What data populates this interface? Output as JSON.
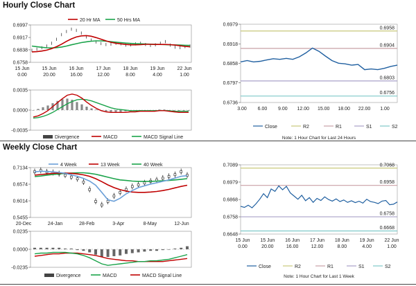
{
  "colors": {
    "close": "#1f5fa0",
    "ma20": "#c00000",
    "ma50": "#1aa34a",
    "candle": "#222222",
    "r2": "#c8c87a",
    "r1": "#c9a0a6",
    "s1": "#a8a0c8",
    "s2": "#7ec8c8",
    "hist": "#888888",
    "grid": "#cccccc",
    "week4": "#6a9fd8",
    "week13": "#c00000",
    "week40": "#1aa34a"
  },
  "sections": {
    "hourly_title": "Hourly Close Chart",
    "weekly_title": "Weekly Close Chart"
  },
  "chart_data": [
    {
      "id": "hourly-price",
      "type": "line",
      "title": "Hourly Close Chart",
      "legend": [
        "20 Hr MA",
        "50 Hrs MA"
      ],
      "y_ticks": [
        "0.6997",
        "0.6917",
        "0.6838",
        "0.6758"
      ],
      "ylim": [
        0.6758,
        0.6997
      ],
      "x_ticks": [
        [
          "15 Jun",
          "0.00"
        ],
        [
          "15 Jun",
          "20.00"
        ],
        [
          "16 Jun",
          "16.00"
        ],
        [
          "17 Jun",
          "12.00"
        ],
        [
          "18 Jun",
          "8.00"
        ],
        [
          "19 Jun",
          "4.00"
        ],
        [
          "22 Jun",
          "1.00"
        ]
      ],
      "series": [
        {
          "name": "Close",
          "values": [
            0.6835,
            0.6842,
            0.6851,
            0.6862,
            0.688,
            0.6905,
            0.6935,
            0.6955,
            0.697,
            0.6962,
            0.6945,
            0.692,
            0.69,
            0.6888,
            0.6878,
            0.6872,
            0.6874,
            0.688,
            0.6876,
            0.6868,
            0.687,
            0.6876,
            0.688,
            0.6872,
            0.6866,
            0.687,
            0.688,
            0.689,
            0.6868,
            0.6855,
            0.6852,
            0.6858,
            0.6862
          ]
        },
        {
          "name": "20 Hr MA",
          "values": [
            0.6825,
            0.6826,
            0.683,
            0.6836,
            0.6845,
            0.6858,
            0.6874,
            0.6892,
            0.6908,
            0.692,
            0.6927,
            0.6929,
            0.6925,
            0.6916,
            0.6906,
            0.6895,
            0.6886,
            0.688,
            0.6876,
            0.6872,
            0.687,
            0.687,
            0.6871,
            0.6873,
            0.6873,
            0.6872,
            0.6872,
            0.6872,
            0.6871,
            0.6868,
            0.6864,
            0.686,
            0.6857
          ]
        },
        {
          "name": "50 Hrs MA",
          "values": [
            0.6862,
            0.6858,
            0.6854,
            0.6851,
            0.685,
            0.6852,
            0.6856,
            0.6862,
            0.687,
            0.6877,
            0.6884,
            0.6889,
            0.6893,
            0.6895,
            0.6895,
            0.6893,
            0.689,
            0.6887,
            0.6884,
            0.6881,
            0.6879,
            0.6877,
            0.6876,
            0.6875,
            0.6874,
            0.6873,
            0.6872,
            0.6871,
            0.687,
            0.6869,
            0.6868,
            0.6867,
            0.6866
          ]
        }
      ]
    },
    {
      "id": "hourly-macd",
      "type": "bar",
      "y_ticks": [
        "0.0035",
        "0.0000",
        "-0.0035"
      ],
      "ylim": [
        -0.0035,
        0.0035
      ],
      "legend": [
        "Divergence",
        "MACD",
        "MACD Signal Line"
      ],
      "series": [
        {
          "name": "Divergence",
          "values": [
            0.0,
            0.0002,
            0.0005,
            0.0008,
            0.0012,
            0.0016,
            0.0019,
            0.002,
            0.0018,
            0.0014,
            0.001,
            0.0006,
            0.0003,
            0.0001,
            -0.0001,
            -0.0002,
            -0.0003,
            -0.0003,
            -0.0003,
            -0.0002,
            -0.0002,
            -0.0001,
            -0.0001,
            -0.0001,
            0.0,
            0.0,
            0.0001,
            0.0001,
            0.0,
            -0.0001,
            -0.0001,
            -0.0001,
            -0.0001
          ]
        },
        {
          "name": "MACD",
          "values": [
            -0.0012,
            -0.001,
            -0.0006,
            -0.0001,
            0.0006,
            0.0013,
            0.002,
            0.0026,
            0.0028,
            0.0026,
            0.0021,
            0.0014,
            0.0008,
            0.0003,
            -0.0001,
            -0.0003,
            -0.0004,
            -0.0004,
            -0.0004,
            -0.0004,
            -0.0003,
            -0.0003,
            -0.0002,
            -0.0002,
            -0.0002,
            -0.0002,
            -0.0001,
            -0.0001,
            -0.0002,
            -0.0003,
            -0.0004,
            -0.0004,
            -0.0004
          ]
        },
        {
          "name": "MACD Signal Line",
          "values": [
            -0.0014,
            -0.0013,
            -0.0011,
            -0.0008,
            -0.0004,
            0.0001,
            0.0006,
            0.0011,
            0.0015,
            0.0018,
            0.0019,
            0.0018,
            0.0016,
            0.0013,
            0.001,
            0.0007,
            0.0004,
            0.0002,
            0.0001,
            0.0,
            -0.0001,
            -0.0001,
            -0.0001,
            -0.0001,
            -0.0001,
            -0.0001,
            -0.0001,
            -0.0001,
            -0.0001,
            -0.0002,
            -0.0002,
            -0.0002,
            -0.0002
          ]
        }
      ]
    },
    {
      "id": "hourly-24h",
      "type": "line",
      "note": "Note: 1 Hour Chart for Last 24 Hours",
      "y_ticks": [
        "0.6979",
        "0.6918",
        "0.6858",
        "0.6797",
        "0.6736"
      ],
      "ylim": [
        0.6736,
        0.6979
      ],
      "x_ticks": [
        "3.00",
        "6.00",
        "9.00",
        "12.00",
        "15.00",
        "18.00",
        "22.00",
        "1.00"
      ],
      "legend": [
        "Close",
        "R2",
        "R1",
        "S1",
        "S2"
      ],
      "levels": [
        {
          "name": "R2",
          "value": 0.6958,
          "label": "0.6958"
        },
        {
          "name": "R1",
          "value": 0.6904,
          "label": "0.6904"
        },
        {
          "name": "S1",
          "value": 0.6803,
          "label": "0.6803"
        },
        {
          "name": "S2",
          "value": 0.6756,
          "label": "0.6756"
        }
      ],
      "series": [
        {
          "name": "Close",
          "values": [
            0.6862,
            0.6866,
            0.6862,
            0.6864,
            0.6868,
            0.6872,
            0.687,
            0.6873,
            0.687,
            0.6878,
            0.689,
            0.6905,
            0.6895,
            0.688,
            0.6866,
            0.6858,
            0.6856,
            0.6852,
            0.6854,
            0.6838,
            0.684,
            0.6838,
            0.6842,
            0.6848,
            0.6852
          ]
        }
      ]
    },
    {
      "id": "weekly-price",
      "type": "line",
      "title": "Weekly Close Chart",
      "legend": [
        "4 Week",
        "13 Week",
        "40 Week"
      ],
      "y_ticks": [
        "0.7134",
        "0.6574",
        "0.6014",
        "0.5455"
      ],
      "ylim": [
        0.5455,
        0.7134
      ],
      "x_ticks": [
        "20-Dec",
        "24-Jan",
        "28-Feb",
        "3-Apr",
        "8-May",
        "12-Jun"
      ],
      "series": [
        {
          "name": "Close",
          "values": [
            0.7,
            0.704,
            0.699,
            0.697,
            0.693,
            0.688,
            0.682,
            0.676,
            0.665,
            0.64,
            0.6,
            0.588,
            0.6,
            0.618,
            0.63,
            0.64,
            0.65,
            0.656,
            0.662,
            0.668,
            0.672,
            0.678,
            0.684,
            0.69,
            0.7,
            0.688
          ]
        },
        {
          "name": "4 Week",
          "values": [
            0.699,
            0.701,
            0.7,
            0.699,
            0.697,
            0.694,
            0.689,
            0.684,
            0.677,
            0.668,
            0.654,
            0.63,
            0.605,
            0.6,
            0.61,
            0.625,
            0.636,
            0.646,
            0.652,
            0.658,
            0.662,
            0.667,
            0.672,
            0.678,
            0.684,
            0.686
          ]
        },
        {
          "name": "13 Week",
          "values": [
            0.688,
            0.69,
            0.692,
            0.694,
            0.695,
            0.695,
            0.694,
            0.692,
            0.689,
            0.684,
            0.676,
            0.666,
            0.655,
            0.646,
            0.639,
            0.634,
            0.631,
            0.63,
            0.63,
            0.631,
            0.633,
            0.636,
            0.64,
            0.645,
            0.65,
            0.654
          ]
        },
        {
          "name": "40 Week",
          "values": [
            0.683,
            0.685,
            0.688,
            0.69,
            0.692,
            0.694,
            0.695,
            0.696,
            0.696,
            0.694,
            0.691,
            0.686,
            0.681,
            0.676,
            0.672,
            0.67,
            0.668,
            0.667,
            0.667,
            0.667,
            0.668,
            0.669,
            0.67,
            0.672,
            0.674,
            0.676
          ]
        }
      ]
    },
    {
      "id": "weekly-macd",
      "type": "bar",
      "y_ticks": [
        "0.0235",
        "0.0000",
        "-0.0235"
      ],
      "ylim": [
        -0.0235,
        0.0235
      ],
      "legend": [
        "Divergence",
        "MACD",
        "MACD Signal Line"
      ],
      "series": [
        {
          "name": "Divergence",
          "values": [
            0.002,
            0.002,
            0.002,
            0.002,
            0.002,
            0.001,
            0.001,
            -0.001,
            -0.002,
            -0.004,
            -0.007,
            -0.01,
            -0.01,
            -0.009,
            -0.008,
            -0.006,
            -0.005,
            -0.004,
            -0.003,
            -0.002,
            -0.002,
            -0.001,
            0.0,
            0.001,
            0.002,
            0.004
          ]
        },
        {
          "name": "MACD",
          "values": [
            -0.006,
            -0.005,
            -0.005,
            -0.004,
            -0.004,
            -0.004,
            -0.005,
            -0.006,
            -0.008,
            -0.011,
            -0.015,
            -0.019,
            -0.021,
            -0.02,
            -0.019,
            -0.018,
            -0.017,
            -0.016,
            -0.016,
            -0.015,
            -0.015,
            -0.014,
            -0.013,
            -0.011,
            -0.009,
            -0.007
          ]
        },
        {
          "name": "MACD Signal Line",
          "values": [
            -0.009,
            -0.008,
            -0.007,
            -0.006,
            -0.006,
            -0.005,
            -0.005,
            -0.005,
            -0.006,
            -0.007,
            -0.008,
            -0.01,
            -0.012,
            -0.013,
            -0.014,
            -0.015,
            -0.015,
            -0.016,
            -0.016,
            -0.016,
            -0.016,
            -0.016,
            -0.015,
            -0.014,
            -0.013,
            -0.012
          ]
        }
      ]
    },
    {
      "id": "weekly-1w",
      "type": "line",
      "note": "Note: 1 Hour Chart for Last 1 Week",
      "y_ticks": [
        "0.7089",
        "0.6979",
        "0.6868",
        "0.6758",
        "0.6648"
      ],
      "ylim": [
        0.6648,
        0.7089
      ],
      "x_ticks": [
        [
          "15 Jun",
          "0.00"
        ],
        [
          "15 Jun",
          "20.00"
        ],
        [
          "16 Jun",
          "16.00"
        ],
        [
          "17 Jun",
          "12.00"
        ],
        [
          "18 Jun",
          "8.00"
        ],
        [
          "19 Jun",
          "4.00"
        ],
        [
          "22 Jun",
          "1.00"
        ]
      ],
      "legend": [
        "Close",
        "R2",
        "R1",
        "S1",
        "S2"
      ],
      "levels": [
        {
          "name": "R2",
          "value": 0.7068,
          "label": "0.7068"
        },
        {
          "name": "R1",
          "value": 0.6958,
          "label": "0.6958"
        },
        {
          "name": "S1",
          "value": 0.6758,
          "label": "0.6758"
        },
        {
          "name": "S2",
          "value": 0.6668,
          "label": "0.6668"
        }
      ],
      "series": [
        {
          "name": "Close",
          "values": [
            0.6825,
            0.6818,
            0.6832,
            0.6815,
            0.684,
            0.687,
            0.6905,
            0.688,
            0.6935,
            0.692,
            0.6955,
            0.693,
            0.6952,
            0.691,
            0.689,
            0.687,
            0.6895,
            0.686,
            0.688,
            0.685,
            0.6875,
            0.6862,
            0.6885,
            0.6868,
            0.6858,
            0.6872,
            0.6855,
            0.6865,
            0.685,
            0.686,
            0.6848,
            0.6857,
            0.6845,
            0.687,
            0.6855,
            0.685,
            0.6842,
            0.6858,
            0.6862,
            0.6835,
            0.6838,
            0.6852
          ]
        }
      ]
    }
  ]
}
